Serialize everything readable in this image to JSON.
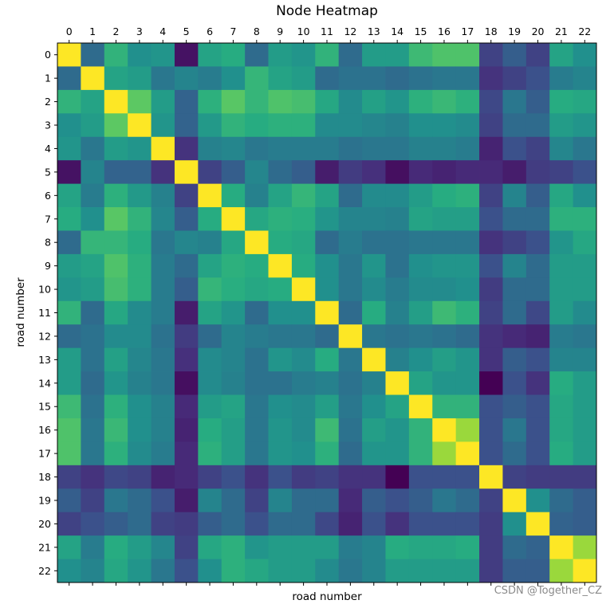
{
  "chart_data": {
    "type": "heatmap",
    "title": "Node Heatmap",
    "xlabel": "road number",
    "ylabel": "road number",
    "x_ticks": [
      "0",
      "1",
      "2",
      "3",
      "4",
      "5",
      "6",
      "7",
      "8",
      "9",
      "10",
      "11",
      "12",
      "13",
      "14",
      "15",
      "16",
      "17",
      "18",
      "19",
      "20",
      "21",
      "22"
    ],
    "y_ticks": [
      "0",
      "1",
      "2",
      "3",
      "4",
      "5",
      "6",
      "7",
      "8",
      "9",
      "10",
      "11",
      "12",
      "13",
      "14",
      "15",
      "16",
      "17",
      "18",
      "19",
      "20",
      "21",
      "22"
    ],
    "x_tick_position": "top",
    "colormap": "viridis",
    "value_range": [
      0,
      1
    ],
    "values": [
      [
        1.0,
        0.35,
        0.65,
        0.5,
        0.52,
        0.05,
        0.58,
        0.62,
        0.35,
        0.55,
        0.52,
        0.65,
        0.35,
        0.55,
        0.55,
        0.68,
        0.72,
        0.72,
        0.2,
        0.3,
        0.2,
        0.58,
        0.5
      ],
      [
        0.35,
        1.0,
        0.58,
        0.55,
        0.4,
        0.45,
        0.42,
        0.5,
        0.66,
        0.58,
        0.55,
        0.35,
        0.38,
        0.38,
        0.35,
        0.38,
        0.4,
        0.4,
        0.15,
        0.2,
        0.25,
        0.42,
        0.45
      ],
      [
        0.65,
        0.58,
        1.0,
        0.75,
        0.55,
        0.32,
        0.64,
        0.74,
        0.66,
        0.72,
        0.7,
        0.6,
        0.48,
        0.57,
        0.52,
        0.64,
        0.67,
        0.64,
        0.22,
        0.4,
        0.3,
        0.62,
        0.6
      ],
      [
        0.5,
        0.55,
        0.75,
        1.0,
        0.52,
        0.32,
        0.54,
        0.65,
        0.62,
        0.64,
        0.64,
        0.48,
        0.48,
        0.46,
        0.44,
        0.5,
        0.5,
        0.48,
        0.2,
        0.35,
        0.35,
        0.55,
        0.52
      ],
      [
        0.52,
        0.4,
        0.55,
        0.52,
        1.0,
        0.15,
        0.44,
        0.46,
        0.4,
        0.42,
        0.42,
        0.42,
        0.38,
        0.4,
        0.4,
        0.44,
        0.44,
        0.42,
        0.1,
        0.25,
        0.2,
        0.46,
        0.4
      ],
      [
        0.05,
        0.45,
        0.32,
        0.32,
        0.15,
        1.0,
        0.2,
        0.3,
        0.46,
        0.35,
        0.3,
        0.08,
        0.18,
        0.14,
        0.04,
        0.12,
        0.1,
        0.12,
        0.12,
        0.08,
        0.18,
        0.2,
        0.25
      ],
      [
        0.58,
        0.42,
        0.64,
        0.54,
        0.44,
        0.2,
        1.0,
        0.62,
        0.44,
        0.58,
        0.66,
        0.58,
        0.35,
        0.48,
        0.48,
        0.55,
        0.62,
        0.64,
        0.2,
        0.45,
        0.3,
        0.6,
        0.5
      ],
      [
        0.62,
        0.5,
        0.74,
        0.65,
        0.46,
        0.3,
        0.62,
        1.0,
        0.6,
        0.64,
        0.63,
        0.52,
        0.45,
        0.45,
        0.44,
        0.58,
        0.56,
        0.56,
        0.25,
        0.35,
        0.35,
        0.64,
        0.64
      ],
      [
        0.35,
        0.66,
        0.66,
        0.62,
        0.4,
        0.46,
        0.44,
        0.6,
        1.0,
        0.62,
        0.6,
        0.35,
        0.42,
        0.38,
        0.38,
        0.4,
        0.4,
        0.4,
        0.15,
        0.2,
        0.25,
        0.52,
        0.6
      ],
      [
        0.55,
        0.58,
        0.72,
        0.64,
        0.42,
        0.35,
        0.58,
        0.64,
        0.62,
        1.0,
        0.62,
        0.5,
        0.4,
        0.52,
        0.38,
        0.5,
        0.52,
        0.52,
        0.25,
        0.45,
        0.35,
        0.55,
        0.55
      ],
      [
        0.52,
        0.55,
        0.7,
        0.64,
        0.42,
        0.3,
        0.66,
        0.63,
        0.6,
        0.62,
        1.0,
        0.5,
        0.4,
        0.48,
        0.42,
        0.48,
        0.48,
        0.5,
        0.18,
        0.35,
        0.35,
        0.55,
        0.55
      ],
      [
        0.65,
        0.35,
        0.6,
        0.48,
        0.42,
        0.08,
        0.58,
        0.52,
        0.35,
        0.5,
        0.5,
        1.0,
        0.35,
        0.62,
        0.44,
        0.56,
        0.68,
        0.64,
        0.2,
        0.35,
        0.22,
        0.55,
        0.48
      ],
      [
        0.35,
        0.38,
        0.48,
        0.48,
        0.38,
        0.18,
        0.35,
        0.45,
        0.42,
        0.4,
        0.4,
        0.35,
        1.0,
        0.4,
        0.38,
        0.4,
        0.38,
        0.35,
        0.15,
        0.12,
        0.1,
        0.42,
        0.4
      ],
      [
        0.55,
        0.38,
        0.57,
        0.46,
        0.4,
        0.14,
        0.48,
        0.45,
        0.38,
        0.52,
        0.48,
        0.62,
        0.4,
        1.0,
        0.44,
        0.5,
        0.56,
        0.52,
        0.15,
        0.3,
        0.25,
        0.45,
        0.45
      ],
      [
        0.55,
        0.35,
        0.52,
        0.44,
        0.4,
        0.04,
        0.48,
        0.44,
        0.38,
        0.38,
        0.42,
        0.44,
        0.38,
        0.44,
        1.0,
        0.58,
        0.52,
        0.52,
        0.0,
        0.25,
        0.15,
        0.62,
        0.55
      ],
      [
        0.68,
        0.38,
        0.64,
        0.5,
        0.44,
        0.12,
        0.55,
        0.58,
        0.4,
        0.5,
        0.48,
        0.56,
        0.4,
        0.5,
        0.58,
        1.0,
        0.65,
        0.65,
        0.25,
        0.3,
        0.25,
        0.6,
        0.55
      ],
      [
        0.72,
        0.4,
        0.67,
        0.5,
        0.44,
        0.1,
        0.62,
        0.56,
        0.4,
        0.52,
        0.48,
        0.68,
        0.38,
        0.56,
        0.52,
        0.65,
        1.0,
        0.85,
        0.25,
        0.4,
        0.25,
        0.6,
        0.55
      ],
      [
        0.72,
        0.4,
        0.64,
        0.48,
        0.42,
        0.12,
        0.64,
        0.56,
        0.4,
        0.52,
        0.5,
        0.64,
        0.35,
        0.52,
        0.52,
        0.65,
        0.85,
        1.0,
        0.25,
        0.35,
        0.25,
        0.62,
        0.55
      ],
      [
        0.2,
        0.15,
        0.22,
        0.2,
        0.1,
        0.12,
        0.2,
        0.25,
        0.15,
        0.25,
        0.18,
        0.2,
        0.15,
        0.15,
        0.0,
        0.25,
        0.25,
        0.25,
        1.0,
        0.2,
        0.18,
        0.18,
        0.18
      ],
      [
        0.3,
        0.2,
        0.4,
        0.35,
        0.25,
        0.08,
        0.45,
        0.35,
        0.2,
        0.45,
        0.35,
        0.35,
        0.12,
        0.3,
        0.25,
        0.3,
        0.4,
        0.35,
        0.2,
        1.0,
        0.5,
        0.35,
        0.3
      ],
      [
        0.2,
        0.25,
        0.3,
        0.35,
        0.2,
        0.18,
        0.3,
        0.35,
        0.25,
        0.35,
        0.35,
        0.22,
        0.1,
        0.25,
        0.15,
        0.25,
        0.25,
        0.25,
        0.18,
        0.5,
        1.0,
        0.32,
        0.3
      ],
      [
        0.58,
        0.42,
        0.62,
        0.55,
        0.46,
        0.2,
        0.6,
        0.64,
        0.52,
        0.55,
        0.55,
        0.55,
        0.42,
        0.45,
        0.62,
        0.6,
        0.6,
        0.62,
        0.18,
        0.35,
        0.32,
        1.0,
        0.85
      ],
      [
        0.5,
        0.45,
        0.6,
        0.52,
        0.4,
        0.25,
        0.5,
        0.64,
        0.6,
        0.55,
        0.55,
        0.48,
        0.4,
        0.45,
        0.55,
        0.55,
        0.55,
        0.55,
        0.18,
        0.3,
        0.3,
        0.85,
        1.0
      ]
    ]
  },
  "watermark": "CSDN @Together_CZ"
}
